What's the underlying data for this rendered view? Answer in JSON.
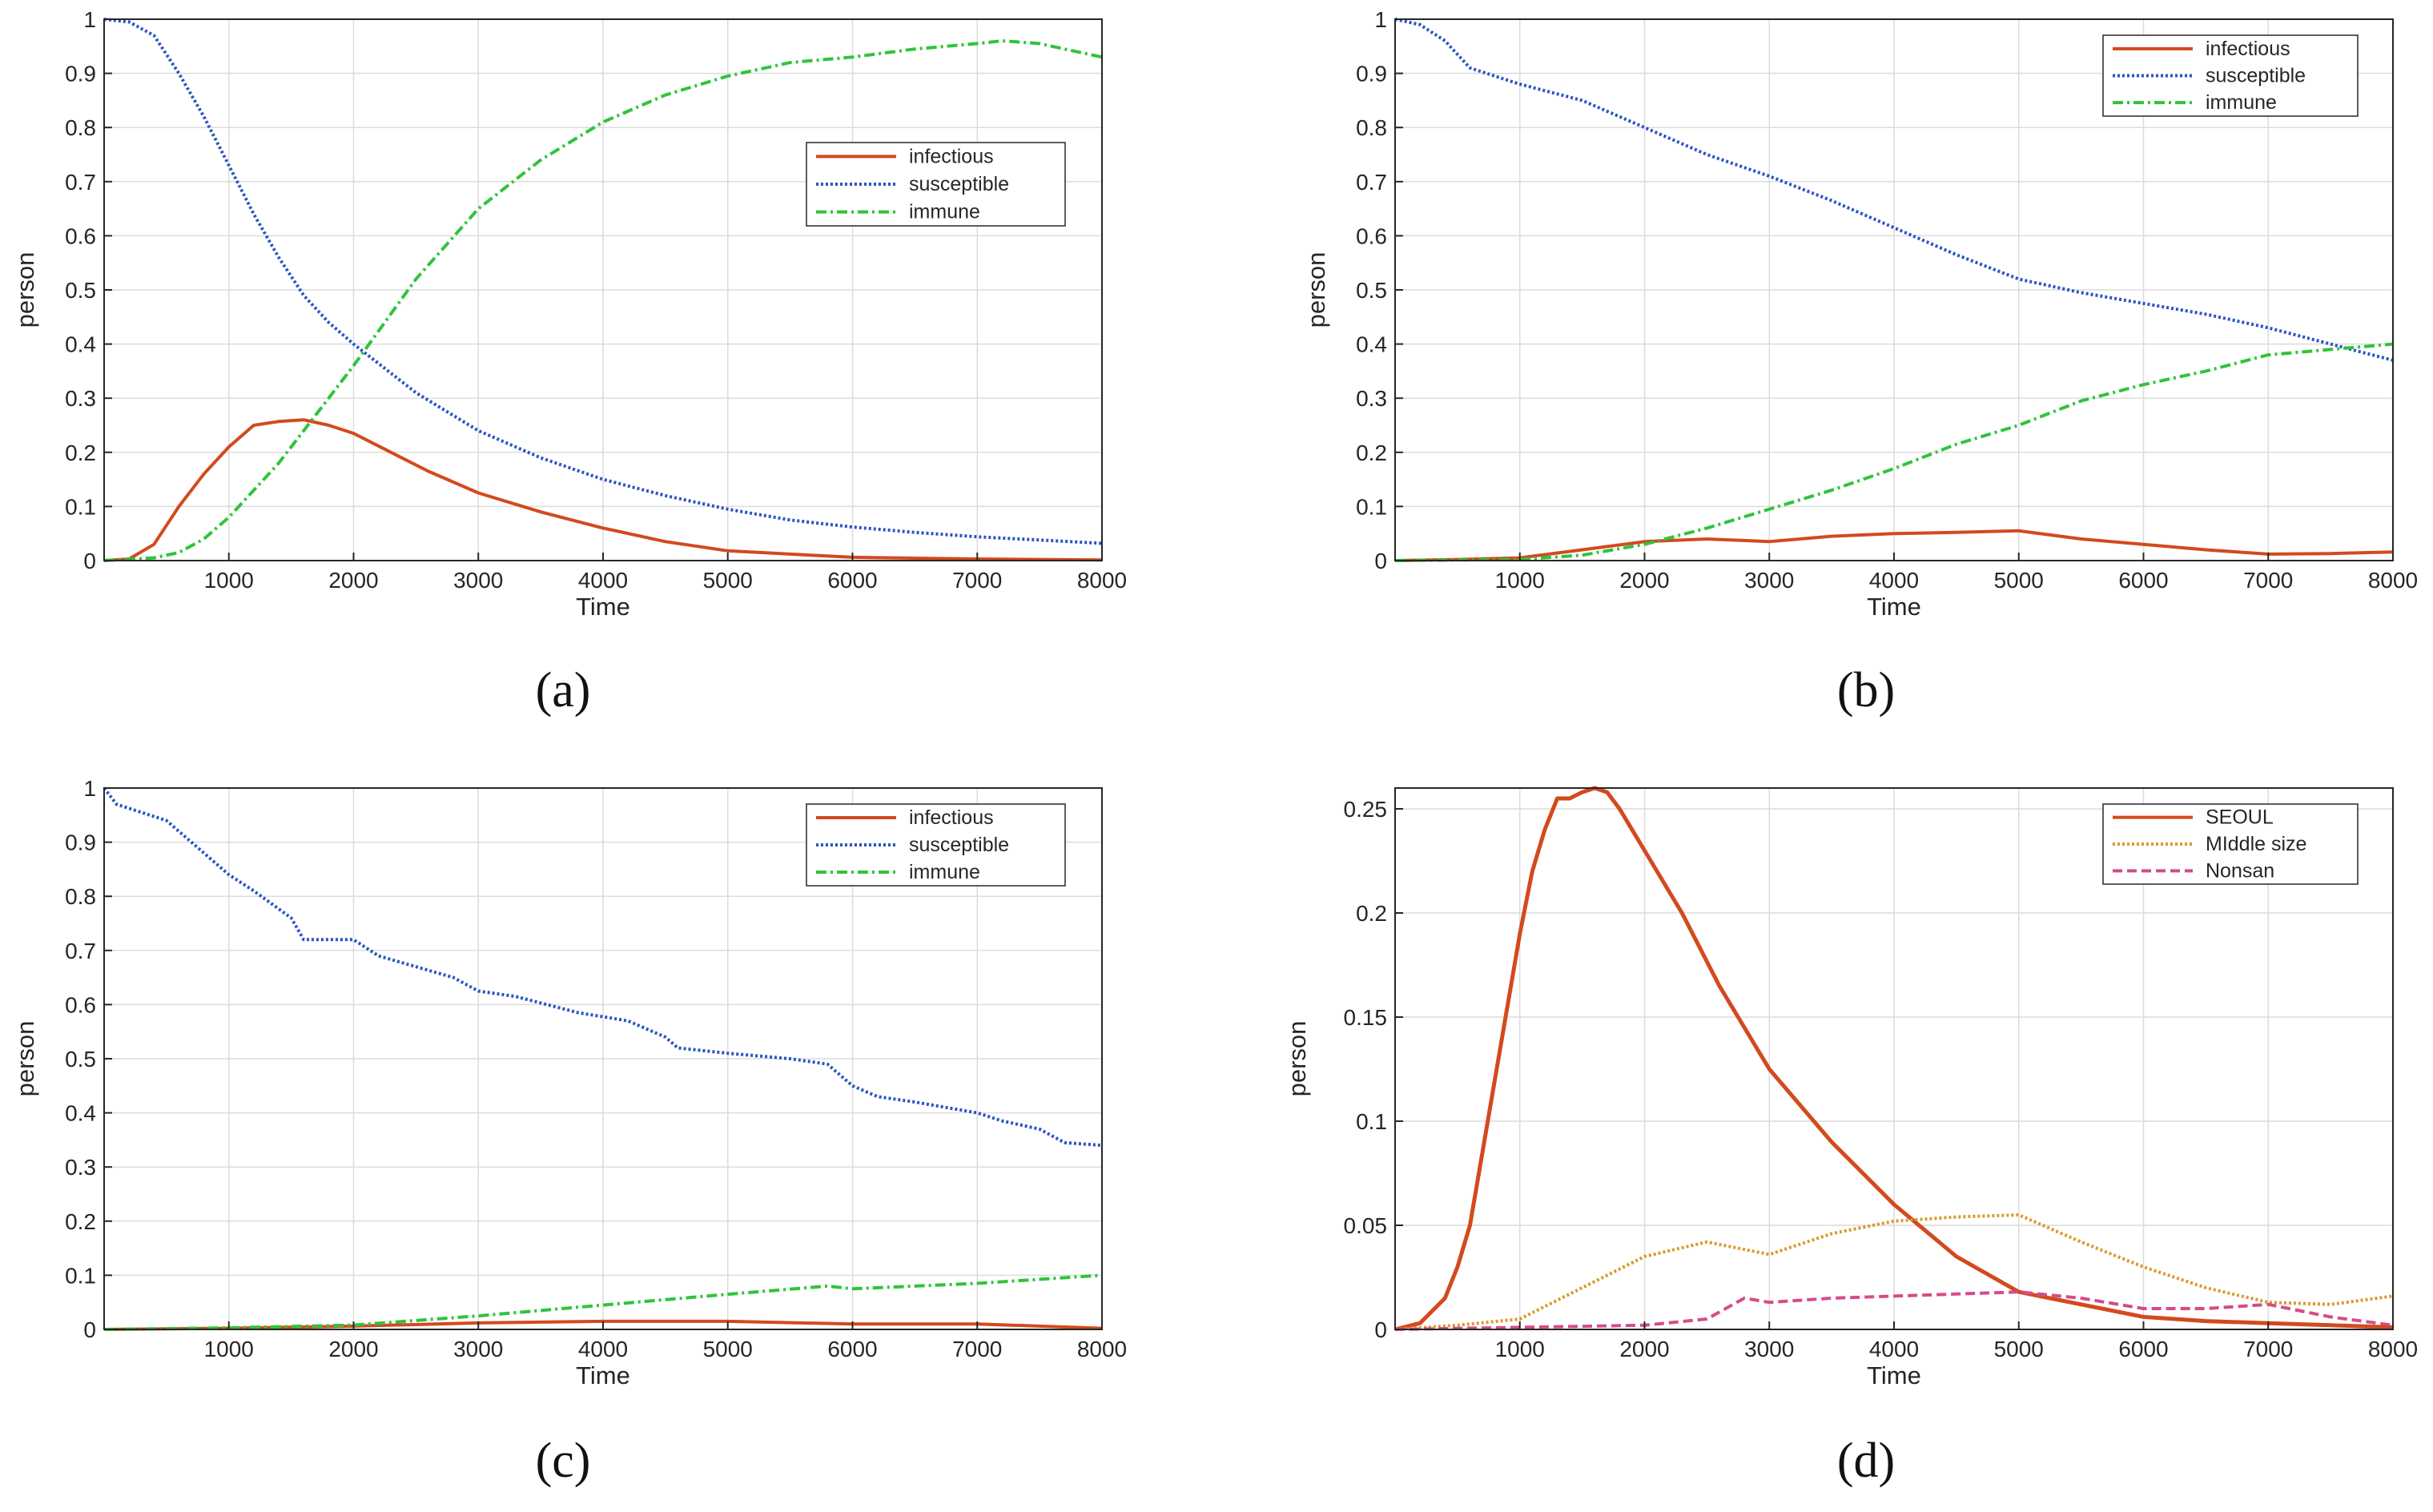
{
  "chart_data": [
    {
      "type": "line",
      "caption": "(a)",
      "xlabel": "Time",
      "ylabel": "person",
      "xlim": [
        0,
        8000
      ],
      "ylim": [
        0,
        1
      ],
      "xticks": [
        1000,
        2000,
        3000,
        4000,
        5000,
        6000,
        7000,
        8000
      ],
      "yticks": [
        0,
        0.1,
        0.2,
        0.3,
        0.4,
        0.5,
        0.6,
        0.7,
        0.8,
        0.9,
        1
      ],
      "ytick_labels": [
        "0",
        "0.1",
        "0.2",
        "0.3",
        "0.4",
        "0.5",
        "0.6",
        "0.7",
        "0.8",
        "0.9",
        "1"
      ],
      "grid": true,
      "legend_position": "upper-right-inset",
      "series": [
        {
          "name": "infectious",
          "color": "#d24a1e",
          "style": "solid",
          "x": [
            0,
            200,
            400,
            600,
            800,
            1000,
            1200,
            1400,
            1600,
            1800,
            2000,
            2300,
            2600,
            3000,
            3500,
            4000,
            4500,
            5000,
            5500,
            6000,
            7000,
            8000
          ],
          "y": [
            0,
            0.003,
            0.03,
            0.1,
            0.16,
            0.21,
            0.25,
            0.257,
            0.26,
            0.25,
            0.235,
            0.2,
            0.165,
            0.125,
            0.09,
            0.06,
            0.035,
            0.018,
            0.012,
            0.006,
            0.003,
            0.001
          ]
        },
        {
          "name": "susceptible",
          "color": "#2b55c4",
          "style": "dotted",
          "x": [
            0,
            200,
            400,
            600,
            800,
            1000,
            1200,
            1400,
            1600,
            1800,
            2000,
            2500,
            3000,
            3500,
            4000,
            4500,
            5000,
            5500,
            6000,
            6500,
            7000,
            7500,
            8000
          ],
          "y": [
            1,
            0.995,
            0.97,
            0.9,
            0.82,
            0.73,
            0.64,
            0.56,
            0.49,
            0.44,
            0.4,
            0.31,
            0.24,
            0.19,
            0.15,
            0.12,
            0.095,
            0.075,
            0.062,
            0.052,
            0.044,
            0.038,
            0.032
          ]
        },
        {
          "name": "immune",
          "color": "#2fc43b",
          "style": "dashdot",
          "x": [
            0,
            400,
            600,
            800,
            1000,
            1200,
            1400,
            1600,
            1800,
            2000,
            2500,
            3000,
            3500,
            4000,
            4500,
            5000,
            5500,
            6000,
            6500,
            7000,
            7200,
            7500,
            7800,
            8000
          ],
          "y": [
            0,
            0.005,
            0.015,
            0.04,
            0.08,
            0.13,
            0.18,
            0.24,
            0.3,
            0.36,
            0.52,
            0.65,
            0.74,
            0.81,
            0.86,
            0.895,
            0.92,
            0.93,
            0.945,
            0.955,
            0.96,
            0.955,
            0.94,
            0.93
          ]
        }
      ]
    },
    {
      "type": "line",
      "caption": "(b)",
      "xlabel": "Time",
      "ylabel": "person",
      "xlim": [
        0,
        8000
      ],
      "ylim": [
        0,
        1
      ],
      "xticks": [
        1000,
        2000,
        3000,
        4000,
        5000,
        6000,
        7000,
        8000
      ],
      "yticks": [
        0,
        0.1,
        0.2,
        0.3,
        0.4,
        0.5,
        0.6,
        0.7,
        0.8,
        0.9,
        1
      ],
      "ytick_labels": [
        "0",
        "0.1",
        "0.2",
        "0.3",
        "0.4",
        "0.5",
        "0.6",
        "0.7",
        "0.8",
        "0.9",
        "1"
      ],
      "grid": true,
      "legend_position": "top-right",
      "series": [
        {
          "name": "infectious",
          "color": "#d24a1e",
          "style": "solid",
          "x": [
            0,
            500,
            1000,
            1500,
            2000,
            2500,
            3000,
            3500,
            4000,
            4500,
            5000,
            5500,
            6000,
            6500,
            7000,
            7500,
            8000
          ],
          "y": [
            0,
            0.002,
            0.005,
            0.02,
            0.035,
            0.04,
            0.035,
            0.045,
            0.05,
            0.052,
            0.055,
            0.04,
            0.03,
            0.02,
            0.012,
            0.013,
            0.016
          ]
        },
        {
          "name": "susceptible",
          "color": "#2b55c4",
          "style": "dotted",
          "x": [
            0,
            200,
            400,
            600,
            800,
            1000,
            1500,
            2000,
            2500,
            3000,
            3500,
            4000,
            4500,
            5000,
            5500,
            6000,
            6500,
            7000,
            7500,
            8000
          ],
          "y": [
            1,
            0.99,
            0.96,
            0.91,
            0.895,
            0.88,
            0.85,
            0.8,
            0.75,
            0.71,
            0.665,
            0.615,
            0.565,
            0.52,
            0.495,
            0.475,
            0.455,
            0.43,
            0.4,
            0.37
          ]
        },
        {
          "name": "immune",
          "color": "#2fc43b",
          "style": "dashdot",
          "x": [
            0,
            1000,
            1500,
            2000,
            2500,
            3000,
            3500,
            4000,
            4500,
            5000,
            5500,
            6000,
            6500,
            7000,
            7500,
            8000
          ],
          "y": [
            0,
            0.002,
            0.01,
            0.03,
            0.06,
            0.095,
            0.13,
            0.17,
            0.215,
            0.25,
            0.295,
            0.325,
            0.35,
            0.38,
            0.39,
            0.4
          ]
        }
      ]
    },
    {
      "type": "line",
      "caption": "(c)",
      "xlabel": "Time",
      "ylabel": "person",
      "xlim": [
        0,
        8000
      ],
      "ylim": [
        0,
        1
      ],
      "xticks": [
        1000,
        2000,
        3000,
        4000,
        5000,
        6000,
        7000,
        8000
      ],
      "yticks": [
        0,
        0.1,
        0.2,
        0.3,
        0.4,
        0.5,
        0.6,
        0.7,
        0.8,
        0.9,
        1
      ],
      "ytick_labels": [
        "0",
        "0.1",
        "0.2",
        "0.3",
        "0.4",
        "0.5",
        "0.6",
        "0.7",
        "0.8",
        "0.9",
        "1"
      ],
      "grid": true,
      "legend_position": "top-right",
      "series": [
        {
          "name": "infectious",
          "color": "#d24a1e",
          "style": "solid",
          "x": [
            0,
            1000,
            2000,
            3000,
            4000,
            5000,
            6000,
            7000,
            8000
          ],
          "y": [
            0,
            0.002,
            0.006,
            0.012,
            0.015,
            0.015,
            0.01,
            0.01,
            0.002
          ]
        },
        {
          "name": "susceptible",
          "color": "#2b55c4",
          "style": "dotted",
          "x": [
            0,
            100,
            500,
            1000,
            1200,
            1500,
            1600,
            2000,
            2200,
            2800,
            3000,
            3300,
            3800,
            4200,
            4500,
            4600,
            5000,
            5500,
            5800,
            6000,
            6200,
            6500,
            7000,
            7200,
            7500,
            7700,
            8000
          ],
          "y": [
            1,
            0.97,
            0.94,
            0.84,
            0.81,
            0.76,
            0.72,
            0.72,
            0.69,
            0.65,
            0.625,
            0.615,
            0.585,
            0.57,
            0.54,
            0.52,
            0.51,
            0.5,
            0.49,
            0.45,
            0.43,
            0.42,
            0.4,
            0.385,
            0.37,
            0.345,
            0.34
          ]
        },
        {
          "name": "immune",
          "color": "#2fc43b",
          "style": "dashdot",
          "x": [
            0,
            1000,
            2000,
            3000,
            4000,
            5000,
            5800,
            6000,
            7000,
            8000
          ],
          "y": [
            0,
            0.003,
            0.008,
            0.025,
            0.045,
            0.065,
            0.08,
            0.075,
            0.085,
            0.1
          ]
        }
      ]
    },
    {
      "type": "line",
      "caption": "(d)",
      "xlabel": "Time",
      "ylabel": "person",
      "xlim": [
        0,
        8000
      ],
      "ylim": [
        0,
        0.26
      ],
      "xticks": [
        1000,
        2000,
        3000,
        4000,
        5000,
        6000,
        7000,
        8000
      ],
      "yticks": [
        0,
        0.05,
        0.1,
        0.15,
        0.2,
        0.25
      ],
      "ytick_labels": [
        "0",
        "0.05",
        "0.1",
        "0.15",
        "0.2",
        "0.25"
      ],
      "grid": true,
      "legend_position": "top-right",
      "series": [
        {
          "name": "SEOUL",
          "color": "#d24a1e",
          "style": "solid",
          "x": [
            0,
            200,
            400,
            500,
            600,
            800,
            1000,
            1100,
            1200,
            1300,
            1400,
            1500,
            1600,
            1700,
            1800,
            2000,
            2300,
            2600,
            3000,
            3500,
            4000,
            4500,
            5000,
            5500,
            6000,
            6500,
            7000,
            7500,
            8000
          ],
          "y": [
            0,
            0.003,
            0.015,
            0.03,
            0.05,
            0.12,
            0.19,
            0.22,
            0.24,
            0.255,
            0.255,
            0.258,
            0.26,
            0.258,
            0.25,
            0.23,
            0.2,
            0.165,
            0.125,
            0.09,
            0.06,
            0.035,
            0.018,
            0.012,
            0.006,
            0.004,
            0.003,
            0.002,
            0.001
          ]
        },
        {
          "name": "MIddle size",
          "color": "#d99a2b",
          "style": "dotted",
          "x": [
            0,
            500,
            1000,
            1500,
            2000,
            2500,
            3000,
            3500,
            4000,
            4500,
            5000,
            5500,
            6000,
            6500,
            7000,
            7500,
            8000
          ],
          "y": [
            0,
            0.002,
            0.005,
            0.02,
            0.035,
            0.042,
            0.036,
            0.046,
            0.052,
            0.054,
            0.055,
            0.042,
            0.03,
            0.02,
            0.013,
            0.012,
            0.016
          ]
        },
        {
          "name": "Nonsan",
          "color": "#d64b8a",
          "style": "dashed",
          "x": [
            0,
            1000,
            2000,
            2500,
            2800,
            3000,
            3500,
            4000,
            4500,
            5000,
            5500,
            6000,
            6500,
            7000,
            7500,
            8000
          ],
          "y": [
            0,
            0.001,
            0.002,
            0.005,
            0.015,
            0.013,
            0.015,
            0.016,
            0.017,
            0.018,
            0.015,
            0.01,
            0.01,
            0.012,
            0.006,
            0.002
          ]
        }
      ]
    }
  ]
}
